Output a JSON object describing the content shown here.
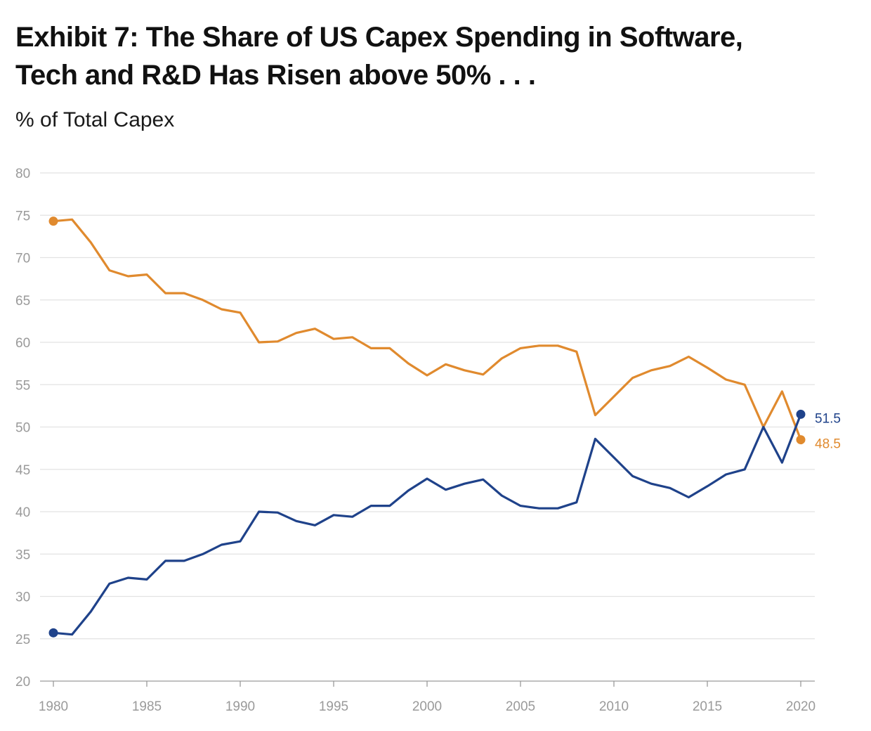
{
  "chart_data": {
    "type": "line",
    "title_lines": [
      "Exhibit 7: The Share of US Capex Spending in Software,",
      "Tech and R&D Has Risen above 50% . . ."
    ],
    "ylabel": "% of Total Capex",
    "xlabel": "",
    "ylim": [
      20,
      80
    ],
    "xlim": [
      1980,
      2020
    ],
    "yticks": [
      20,
      25,
      30,
      35,
      40,
      45,
      50,
      55,
      60,
      65,
      70,
      75,
      80
    ],
    "xticks": [
      1980,
      1985,
      1990,
      1995,
      2000,
      2005,
      2010,
      2015,
      2020
    ],
    "grid": true,
    "x": [
      1980,
      1981,
      1982,
      1983,
      1984,
      1985,
      1986,
      1987,
      1988,
      1989,
      1990,
      1991,
      1992,
      1993,
      1994,
      1995,
      1996,
      1997,
      1998,
      1999,
      2000,
      2001,
      2002,
      2003,
      2004,
      2005,
      2006,
      2007,
      2008,
      2009,
      2010,
      2011,
      2012,
      2013,
      2014,
      2015,
      2016,
      2017,
      2018,
      2019,
      2020
    ],
    "series": [
      {
        "color": "#e08a2e",
        "end_label": "48.5",
        "values": [
          74.3,
          74.5,
          71.8,
          68.5,
          67.8,
          68.0,
          65.8,
          65.8,
          65.0,
          63.9,
          63.5,
          60.0,
          60.1,
          61.1,
          61.6,
          60.4,
          60.6,
          59.3,
          59.3,
          57.5,
          56.1,
          57.4,
          56.7,
          56.2,
          58.1,
          59.3,
          59.6,
          59.6,
          58.9,
          51.4,
          53.6,
          55.8,
          56.7,
          57.2,
          58.3,
          57.0,
          55.6,
          55.0,
          50.0,
          54.2,
          48.5
        ]
      },
      {
        "color": "#1f428a",
        "end_label": "51.5",
        "values": [
          25.7,
          25.5,
          28.2,
          31.5,
          32.2,
          32.0,
          34.2,
          34.2,
          35.0,
          36.1,
          36.5,
          40.0,
          39.9,
          38.9,
          38.4,
          39.6,
          39.4,
          40.7,
          40.7,
          42.5,
          43.9,
          42.6,
          43.3,
          43.8,
          41.9,
          40.7,
          40.4,
          40.4,
          41.1,
          48.6,
          46.4,
          44.2,
          43.3,
          42.8,
          41.7,
          43.0,
          44.4,
          45.0,
          50.0,
          45.8,
          51.5
        ]
      }
    ]
  }
}
